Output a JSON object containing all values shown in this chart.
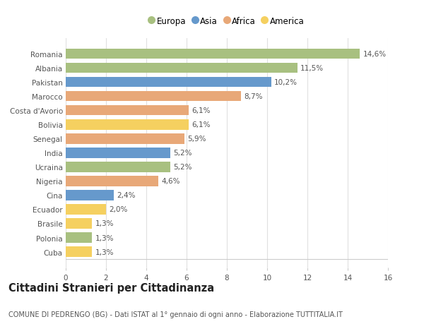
{
  "categories": [
    "Romania",
    "Albania",
    "Pakistan",
    "Marocco",
    "Costa d'Avorio",
    "Bolivia",
    "Senegal",
    "India",
    "Ucraina",
    "Nigeria",
    "Cina",
    "Ecuador",
    "Brasile",
    "Polonia",
    "Cuba"
  ],
  "values": [
    14.6,
    11.5,
    10.2,
    8.7,
    6.1,
    6.1,
    5.9,
    5.2,
    5.2,
    4.6,
    2.4,
    2.0,
    1.3,
    1.3,
    1.3
  ],
  "labels": [
    "14,6%",
    "11,5%",
    "10,2%",
    "8,7%",
    "6,1%",
    "6,1%",
    "5,9%",
    "5,2%",
    "5,2%",
    "4,6%",
    "2,4%",
    "2,0%",
    "1,3%",
    "1,3%",
    "1,3%"
  ],
  "colors": [
    "#a8c080",
    "#a8c080",
    "#6699cc",
    "#e8a878",
    "#e8a878",
    "#f5d060",
    "#e8a878",
    "#6699cc",
    "#a8c080",
    "#e8a878",
    "#6699cc",
    "#f5d060",
    "#f5d060",
    "#a8c080",
    "#f5d060"
  ],
  "legend_labels": [
    "Europa",
    "Asia",
    "Africa",
    "America"
  ],
  "legend_colors": [
    "#a8c080",
    "#6699cc",
    "#e8a878",
    "#f5d060"
  ],
  "title": "Cittadini Stranieri per Cittadinanza",
  "subtitle": "COMUNE DI PEDRENGO (BG) - Dati ISTAT al 1° gennaio di ogni anno - Elaborazione TUTTITALIA.IT",
  "xlim": [
    0,
    16
  ],
  "xticks": [
    0,
    2,
    4,
    6,
    8,
    10,
    12,
    14,
    16
  ],
  "bg_color": "#ffffff",
  "grid_color": "#e0e0e0",
  "bar_height": 0.72,
  "label_fontsize": 7.5,
  "tick_fontsize": 7.5,
  "title_fontsize": 10.5,
  "subtitle_fontsize": 7.0
}
